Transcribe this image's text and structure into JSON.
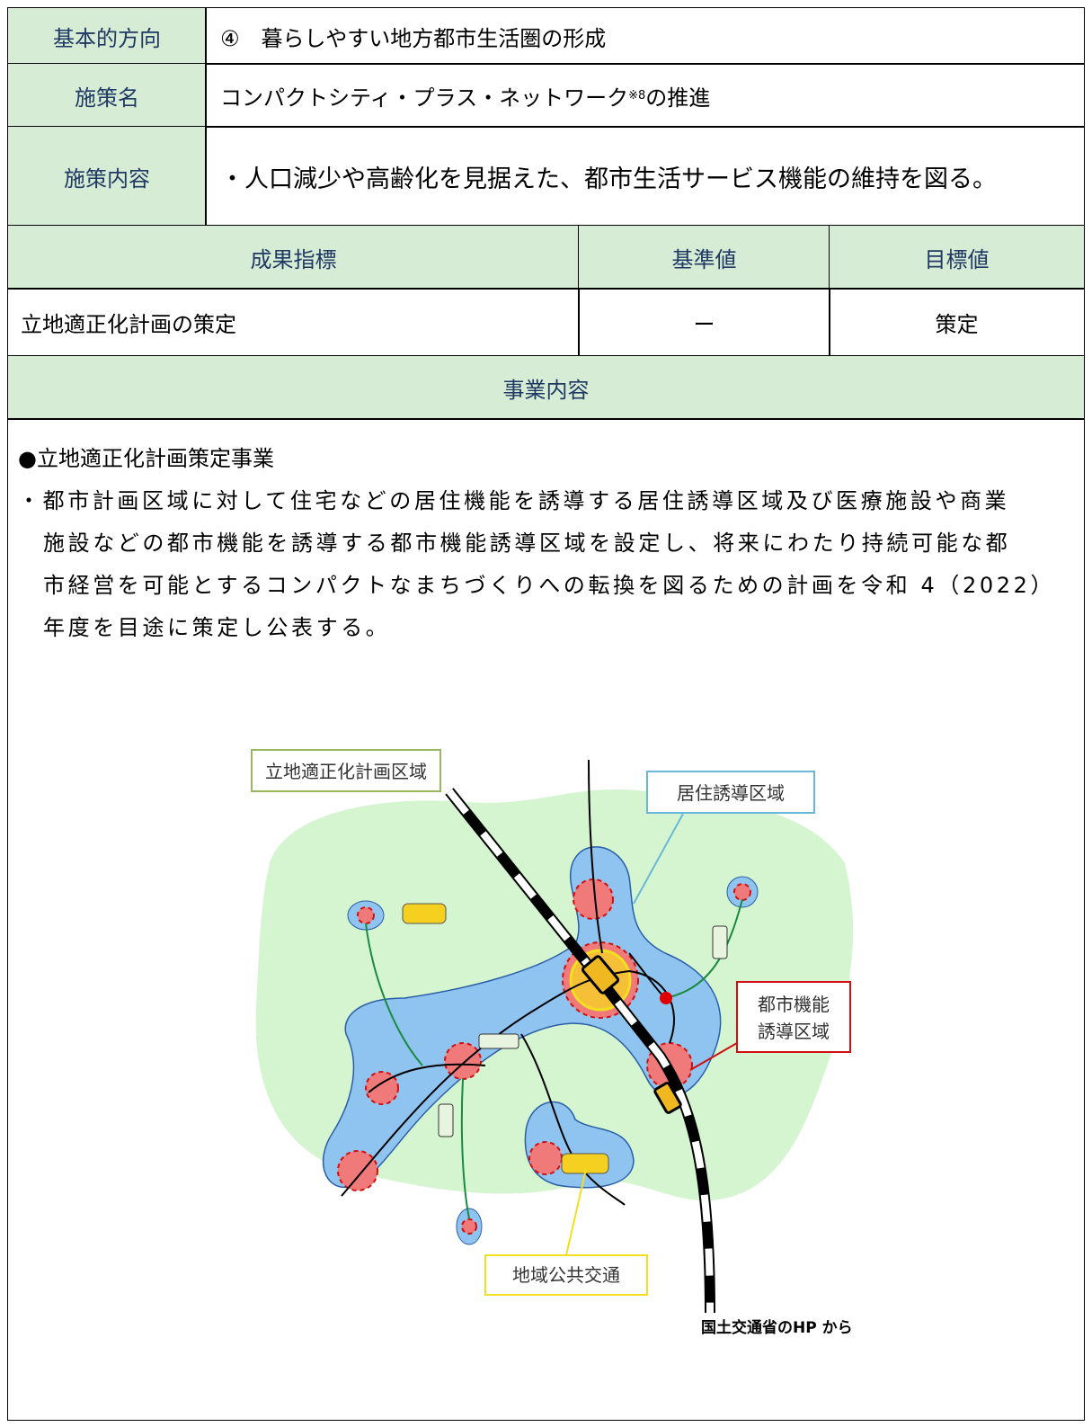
{
  "table": {
    "rows": [
      {
        "label": "基本的方向",
        "value": "④　暮らしやすい地方都市生活圏の形成"
      },
      {
        "label": "施策名",
        "value": {
          "text": "コンパクトシティ・プラス・ネットワーク",
          "note": "※8",
          "suffix": "の推進"
        }
      },
      {
        "label": "施策内容",
        "value": "・人口減少や高齢化を見据えた、都市生活サービス機能の維持を図る。"
      }
    ],
    "indicator_header": [
      "成果指標",
      "基準値",
      "目標値"
    ],
    "indicator_row": [
      "立地適正化計画の策定",
      "ー",
      "策定"
    ],
    "section_header": "事業内容"
  },
  "content": {
    "heading": "●立地適正化計画策定事業",
    "lines": [
      "・都市計画区域に対して住宅などの居住機能を誘導する居住誘導区域及び医療施設や商業",
      "施設などの都市機能を誘導する都市機能誘導区域を設定し、将来にわたり持続可能な都",
      "市経営を可能とするコンパクトなまちづくりへの転換を図るための計画を令和 4（2022）",
      "年度を目途に策定し公表する。"
    ]
  },
  "figure": {
    "labels": {
      "plan_area": "立地適正化計画区域",
      "residential_area": "居住誘導区域",
      "urban_function_area": [
        "都市機能",
        "誘導区域"
      ],
      "public_transport": "地域公共交通"
    },
    "caption": "国土交通省のHP から"
  }
}
